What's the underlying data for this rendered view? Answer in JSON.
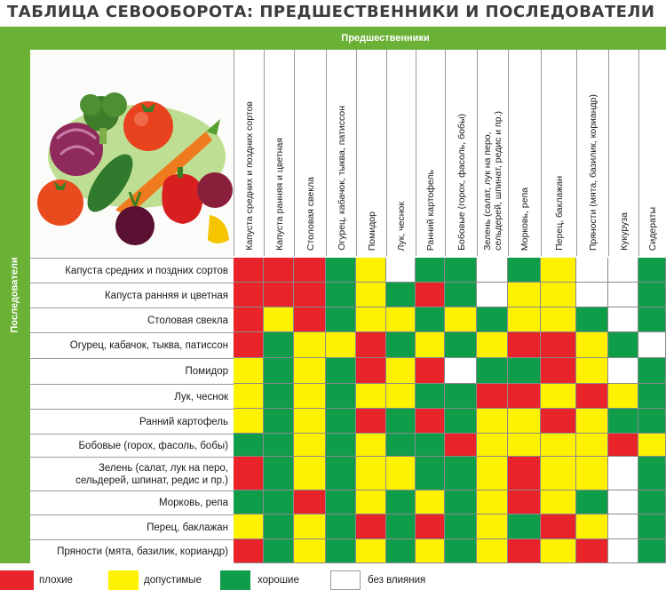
{
  "title": "ТАБЛИЦА СЕВООБОРОТА: ПРЕДШЕСТВЕННИКИ И ПОСЛЕДОВАТЕЛИ",
  "top_label": "Предшественники",
  "side_label": "Последователи",
  "colors": {
    "bad": "#e8232a",
    "acceptable": "#fff200",
    "good": "#0f9d49",
    "none": "#ffffff",
    "band": "#6ab136"
  },
  "columns": [
    "Капуста средних и поздних сортов",
    "Капуста ранняя и цветная",
    "Столовая свекла",
    "Огурец, кабачок, тыква, патиссон",
    "Помидор",
    "Лук, чеснок",
    "Ранний картофель",
    "Бобовые (горох, фасоль, бобы)",
    "Зелень (салат, лук на перо,\nсельдерей, шпинат, редис и пр.)",
    "Морковь, репа",
    "Перец, баклажан",
    "Пряности (мята, базилик, кориандр)",
    "Кукуруза",
    "Сидераты"
  ],
  "rows": [
    {
      "label": "Капуста средних и поздних сортов",
      "cells": [
        "R",
        "R",
        "R",
        "G",
        "Y",
        "W",
        "G",
        "G",
        "W",
        "G",
        "Y",
        "W",
        "W",
        "G"
      ]
    },
    {
      "label": "Капуста ранняя и цветная",
      "cells": [
        "R",
        "R",
        "R",
        "G",
        "Y",
        "G",
        "R",
        "G",
        "W",
        "Y",
        "Y",
        "W",
        "W",
        "G"
      ]
    },
    {
      "label": "Столовая свекла",
      "cells": [
        "R",
        "Y",
        "R",
        "G",
        "Y",
        "Y",
        "G",
        "Y",
        "G",
        "Y",
        "Y",
        "G",
        "W",
        "G"
      ]
    },
    {
      "label": "Огурец, кабачок, тыква, патиссон",
      "cells": [
        "R",
        "G",
        "Y",
        "Y",
        "R",
        "G",
        "Y",
        "G",
        "Y",
        "R",
        "R",
        "Y",
        "G",
        "W"
      ]
    },
    {
      "label": "Помидор",
      "cells": [
        "Y",
        "G",
        "Y",
        "G",
        "R",
        "Y",
        "R",
        "W",
        "G",
        "G",
        "R",
        "Y",
        "W",
        "G"
      ]
    },
    {
      "label": "Лук, чеснок",
      "cells": [
        "Y",
        "G",
        "Y",
        "G",
        "Y",
        "Y",
        "G",
        "G",
        "R",
        "R",
        "Y",
        "R",
        "Y",
        "G"
      ]
    },
    {
      "label": "Ранний картофель",
      "cells": [
        "Y",
        "G",
        "Y",
        "G",
        "R",
        "G",
        "R",
        "G",
        "Y",
        "Y",
        "R",
        "Y",
        "G",
        "G"
      ]
    },
    {
      "label": "Бобовые (горох, фасоль, бобы)",
      "cells": [
        "G",
        "G",
        "Y",
        "G",
        "Y",
        "G",
        "G",
        "R",
        "Y",
        "Y",
        "Y",
        "Y",
        "R",
        "Y"
      ]
    },
    {
      "label": "Зелень (салат, лук на перо,\nсельдерей, шпинат, редис и пр.)",
      "cells": [
        "R",
        "G",
        "Y",
        "G",
        "Y",
        "Y",
        "G",
        "G",
        "Y",
        "R",
        "Y",
        "Y",
        "W",
        "G"
      ]
    },
    {
      "label": "Морковь, репа",
      "cells": [
        "G",
        "G",
        "R",
        "G",
        "Y",
        "G",
        "Y",
        "G",
        "Y",
        "R",
        "Y",
        "G",
        "W",
        "G"
      ]
    },
    {
      "label": "Перец, баклажан",
      "cells": [
        "Y",
        "G",
        "Y",
        "G",
        "R",
        "G",
        "R",
        "G",
        "Y",
        "G",
        "R",
        "Y",
        "W",
        "G"
      ]
    },
    {
      "label": "Пряности (мята, базилик, кориандр)",
      "cells": [
        "R",
        "G",
        "Y",
        "G",
        "Y",
        "G",
        "Y",
        "G",
        "Y",
        "R",
        "Y",
        "R",
        "W",
        "G"
      ]
    }
  ],
  "legend": [
    {
      "key": "R",
      "label": "плохие"
    },
    {
      "key": "Y",
      "label": "допустимые"
    },
    {
      "key": "G",
      "label": "хорошие"
    },
    {
      "key": "W",
      "label": "без влияния"
    }
  ]
}
